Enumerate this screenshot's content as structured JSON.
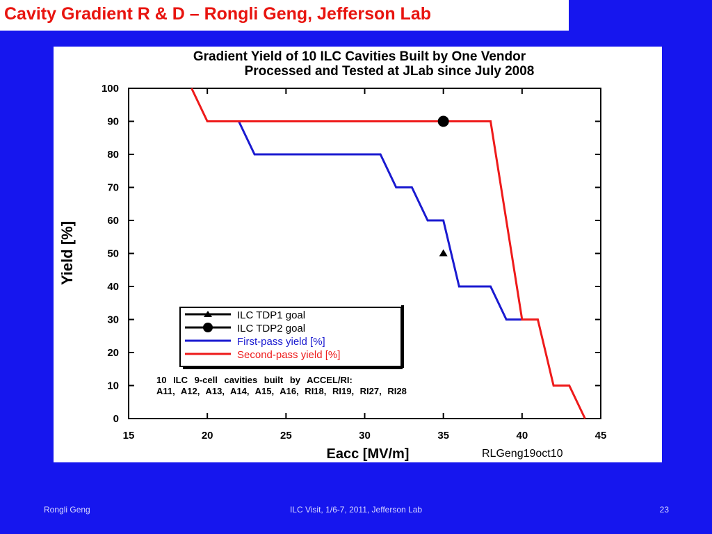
{
  "slide": {
    "title": "Cavity Gradient R & D – Rongli Geng, Jefferson Lab",
    "footer_left": "Rongli Geng",
    "footer_center": "ILC Visit, 1/6-7, 2011, Jefferson Lab",
    "footer_right": "23",
    "colors": {
      "background": "#1616ee",
      "title": "#e8140f",
      "panel": "#ffffff"
    }
  },
  "chart_data": {
    "type": "line",
    "title": "Gradient Yield of 10 ILC Cavities Built by One Vendor",
    "subtitle": "Processed and Tested at JLab since July 2008",
    "xlabel": "Eacc [MV/m]",
    "ylabel": "Yield [%]",
    "xlim": [
      15,
      45
    ],
    "ylim": [
      0,
      100
    ],
    "xticks": [
      15,
      20,
      25,
      30,
      35,
      40,
      45
    ],
    "yticks": [
      0,
      10,
      20,
      30,
      40,
      50,
      60,
      70,
      80,
      90,
      100
    ],
    "xtick_labels": [
      "15",
      "20",
      "25",
      "30",
      "35",
      "40",
      "45"
    ],
    "ytick_labels": [
      "0",
      "10",
      "20",
      "30",
      "40",
      "50",
      "60",
      "70",
      "80",
      "90",
      "100"
    ],
    "grid": false,
    "legend_position": "lower-left",
    "series": [
      {
        "name": "ILC TDP1 goal",
        "kind": "marker-triangle",
        "color": "#000000",
        "x": [
          35
        ],
        "y": [
          50
        ]
      },
      {
        "name": "ILC TDP2 goal",
        "kind": "marker-circle",
        "color": "#000000",
        "x": [
          35
        ],
        "y": [
          90
        ]
      },
      {
        "name": "First-pass yield [%]",
        "kind": "line",
        "color": "#1a1ad0",
        "x": [
          22,
          23,
          31,
          32,
          33,
          34,
          35,
          36,
          38,
          39,
          40
        ],
        "y": [
          90,
          80,
          80,
          70,
          70,
          60,
          60,
          40,
          40,
          30,
          30
        ]
      },
      {
        "name": "Second-pass yield [%]",
        "kind": "line",
        "color": "#ee1a1a",
        "x": [
          19,
          20,
          38,
          40,
          41,
          42,
          43,
          44
        ],
        "y": [
          100,
          90,
          90,
          30,
          30,
          10,
          10,
          0
        ]
      }
    ],
    "annotations": [
      "10 ILC 9-cell cavities built by ACCEL/RI:",
      "A11, A12, A13, A14, A15, A16, RI18, RI19, RI27, RI28"
    ],
    "credit": "RLGeng19oct10"
  }
}
